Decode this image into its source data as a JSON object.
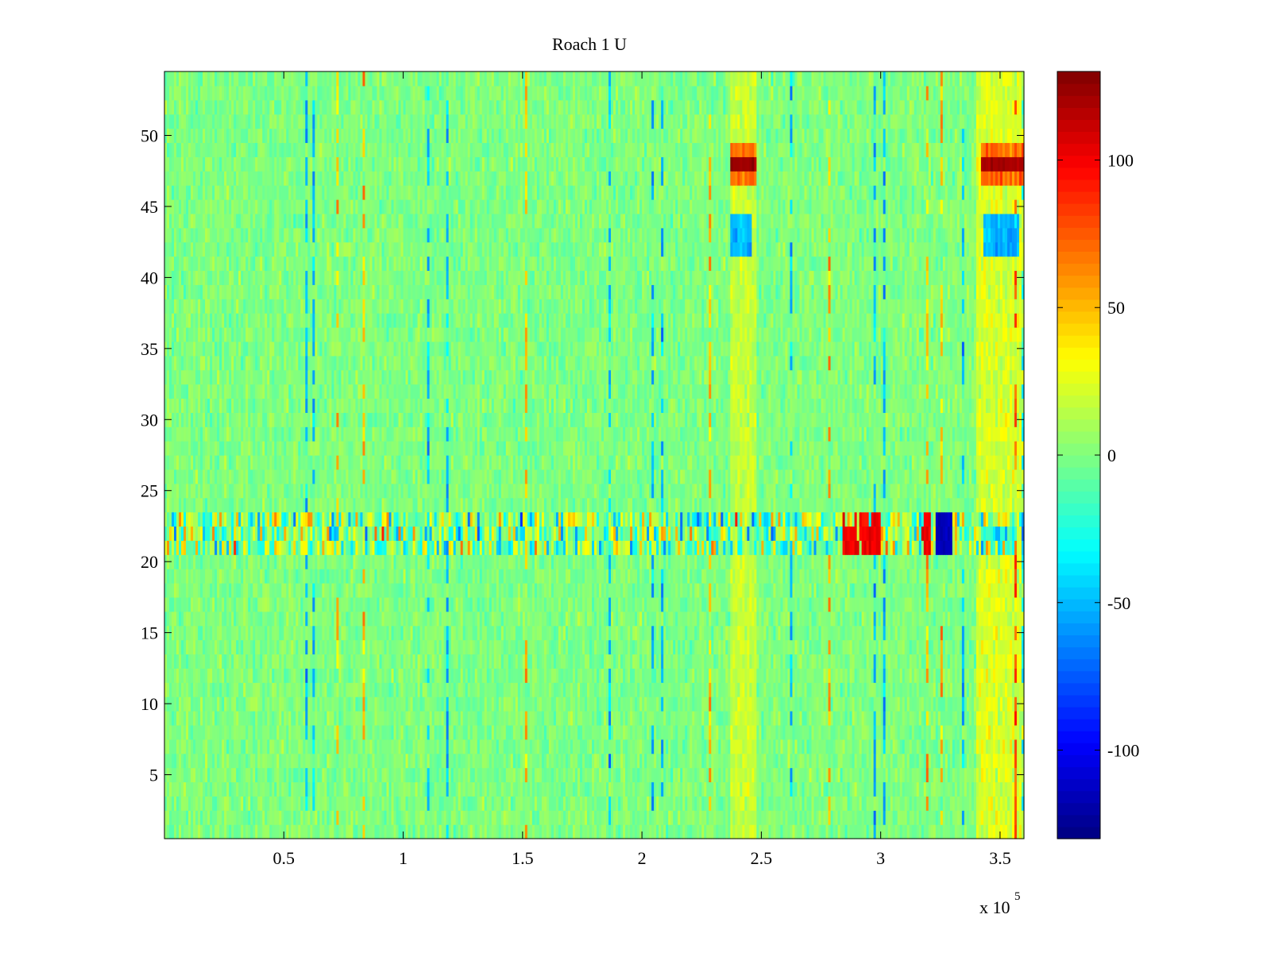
{
  "chart_data": {
    "type": "heatmap",
    "title": "Roach 1 U",
    "xlabel": "",
    "ylabel": "",
    "xlim": [
      0,
      360000
    ],
    "ylim": [
      0.5,
      54.5
    ],
    "x_multiplier_label": "x 10",
    "x_multiplier_exponent": "5",
    "x_ticks": [
      0.5,
      1,
      1.5,
      2,
      2.5,
      3,
      3.5
    ],
    "x_tick_labels": [
      "0.5",
      "1",
      "1.5",
      "2",
      "2.5",
      "3",
      "3.5"
    ],
    "y_ticks": [
      5,
      10,
      15,
      20,
      25,
      30,
      35,
      40,
      45,
      50
    ],
    "y_tick_labels": [
      "5",
      "10",
      "15",
      "20",
      "25",
      "30",
      "35",
      "40",
      "45",
      "50"
    ],
    "rows": 54,
    "columns": 360,
    "colormap": "jet",
    "clim": [
      -130,
      130
    ],
    "colorbar": {
      "ticks": [
        -100,
        -50,
        0,
        50,
        100
      ],
      "tick_labels": [
        "-100",
        "-50",
        "0",
        "50",
        "100"
      ]
    },
    "approximate_features": {
      "background_range": [
        -20,
        20
      ],
      "noisy_band_rows": [
        21,
        23
      ],
      "hot_cells_row_48": {
        "x_ranges": [
          [
            237000,
            248000
          ],
          [
            342000,
            360000
          ]
        ],
        "value": 120
      },
      "cold_cells_rows_42_44": {
        "x_ranges": [
          [
            237000,
            246000
          ],
          [
            343000,
            358000
          ]
        ],
        "value": -50
      },
      "cold_block_rows_21_23": {
        "x_range": [
          323000,
          330000
        ],
        "value": -120
      },
      "hot_block_rows_21_23": {
        "x_ranges": [
          [
            284000,
            300000
          ],
          [
            317000,
            321000
          ]
        ],
        "value": 110
      },
      "warm_column_x": [
        237000,
        248000
      ],
      "warm_right_edge_x": [
        340000,
        360000
      ]
    }
  }
}
